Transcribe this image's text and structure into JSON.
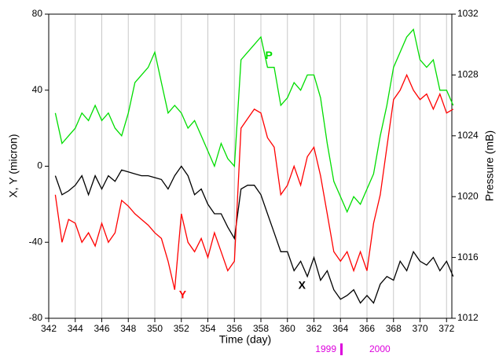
{
  "chart_data": {
    "type": "line",
    "xlabel": "Time (day)",
    "ylabel": "X, Y (micron)",
    "y2label": "Pressure (mB)",
    "x": [
      342.5,
      343,
      343.5,
      344,
      344.5,
      345,
      345.5,
      346,
      346.5,
      347,
      347.5,
      348,
      348.5,
      349,
      349.5,
      350,
      350.5,
      351,
      351.5,
      352,
      352.5,
      353,
      353.5,
      354,
      354.5,
      355,
      355.5,
      356,
      356.5,
      357,
      357.5,
      358,
      358.5,
      359,
      359.5,
      360,
      360.5,
      361,
      361.5,
      362,
      362.5,
      363,
      363.5,
      364,
      364.5,
      365,
      365.5,
      366,
      366.5,
      367,
      367.5,
      368,
      368.5,
      369,
      369.5,
      370,
      370.5,
      371,
      371.5,
      372,
      372.5
    ],
    "series": [
      {
        "name": "X",
        "color": "#000000",
        "values": [
          -5,
          -15,
          -13,
          -10,
          -5,
          -15,
          -5,
          -12,
          -5,
          -8,
          -2,
          -3,
          -4,
          -5,
          -5,
          -6,
          -7,
          -12,
          -5,
          0,
          -5,
          -15,
          -12,
          -20,
          -25,
          -25,
          -32,
          -38,
          -12,
          -10,
          -10,
          -15,
          -25,
          -35,
          -45,
          -45,
          -55,
          -50,
          -58,
          -48,
          -60,
          -55,
          -65,
          -70,
          -68,
          -65,
          -72,
          -68,
          -72,
          -62,
          -58,
          -60,
          -50,
          -55,
          -45,
          -50,
          -52,
          -48,
          -55,
          -50,
          -58
        ]
      },
      {
        "name": "Y",
        "color": "#ff0000",
        "values": [
          -15,
          -40,
          -28,
          -30,
          -40,
          -35,
          -42,
          -30,
          -40,
          -35,
          -18,
          -21,
          -25,
          -28,
          -31,
          -35,
          -38,
          -50,
          -65,
          -25,
          -40,
          -45,
          -38,
          -48,
          -35,
          -45,
          -55,
          -50,
          20,
          25,
          30,
          28,
          15,
          10,
          -15,
          -10,
          0,
          -10,
          5,
          10,
          -5,
          -25,
          -45,
          -50,
          -45,
          -55,
          -45,
          -55,
          -30,
          -15,
          10,
          35,
          40,
          48,
          40,
          35,
          38,
          30,
          38,
          28,
          30
        ]
      },
      {
        "name": "P",
        "color": "#00dd00",
        "axis": "y2",
        "values": [
          1025.5,
          1023.5,
          1024,
          1024.5,
          1025.5,
          1025,
          1026,
          1025,
          1025.5,
          1024.5,
          1024,
          1025.5,
          1027.5,
          1028,
          1028.5,
          1029.5,
          1027.5,
          1025.5,
          1026,
          1025.5,
          1024.5,
          1025,
          1024,
          1023,
          1022,
          1023.5,
          1022.5,
          1022,
          1029,
          1029.5,
          1030,
          1030.5,
          1028.5,
          1028.5,
          1026,
          1026.5,
          1027.5,
          1027,
          1028,
          1028,
          1026.5,
          1023.5,
          1021,
          1020,
          1019,
          1020,
          1019.5,
          1020.5,
          1021.5,
          1024,
          1026,
          1028.5,
          1029.5,
          1030.5,
          1031,
          1029,
          1028.5,
          1029,
          1027,
          1027,
          1026
        ]
      }
    ],
    "annotations": [
      "1999",
      "2000"
    ],
    "annotation_color": "#dd00dd",
    "xlim": [
      342,
      372.4
    ],
    "xticks": [
      342,
      344,
      346,
      348,
      350,
      352,
      354,
      356,
      358,
      360,
      362,
      364,
      366,
      368,
      370,
      372
    ],
    "ylim": [
      -80,
      80
    ],
    "yticks": [
      -80,
      -40,
      0,
      40,
      80
    ],
    "y2lim": [
      1012,
      1032
    ],
    "y2ticks": [
      1012,
      1016,
      1020,
      1024,
      1028,
      1032
    ],
    "grid": true
  }
}
